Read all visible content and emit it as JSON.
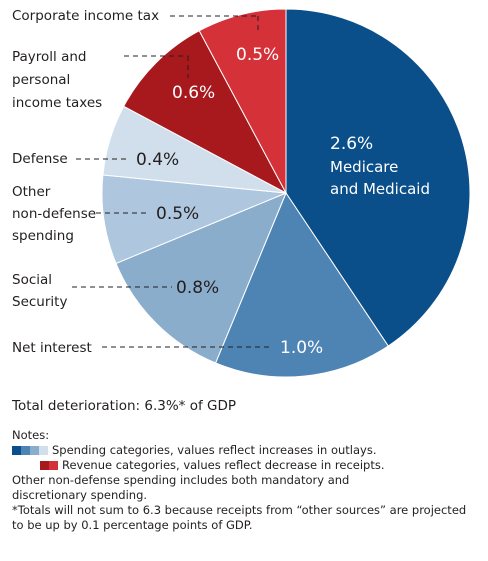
{
  "chart_data": {
    "type": "pie",
    "slices": [
      {
        "label": "Medicare and Medicaid",
        "value": 2.6,
        "display": "2.6%",
        "color": "#0b4f8a",
        "category": "spending"
      },
      {
        "label": "Net interest",
        "value": 1.0,
        "display": "1.0%",
        "color": "#4d84b4",
        "category": "spending"
      },
      {
        "label": "Social Security",
        "value": 0.8,
        "display": "0.8%",
        "color": "#8aadcc",
        "category": "spending"
      },
      {
        "label": "Other non-defense spending",
        "value": 0.5,
        "display": "0.5%",
        "color": "#afc7de",
        "category": "spending"
      },
      {
        "label": "Defense",
        "value": 0.4,
        "display": "0.4%",
        "color": "#d1dfec",
        "category": "spending"
      },
      {
        "label": "Payroll and personal income taxes",
        "value": 0.6,
        "display": "0.6%",
        "color": "#a8191e",
        "category": "revenue"
      },
      {
        "label": "Corporate income tax",
        "value": 0.5,
        "display": "0.5%",
        "color": "#d43139",
        "category": "revenue"
      }
    ],
    "labels": {
      "corporate": "Corporate income tax",
      "payroll": [
        "Payroll and",
        "personal",
        "income taxes"
      ],
      "defense": "Defense",
      "other": [
        "Other",
        "non-defense",
        "spending"
      ],
      "social": [
        "Social",
        "Security"
      ],
      "interest": "Net interest",
      "medicare": [
        "Medicare",
        "and Medicaid"
      ]
    }
  },
  "total_text": "Total deterioration: 6.3%* of GDP",
  "notes": {
    "heading": "Notes:",
    "spending_legend": "Spending categories, values reflect increases in outlays.",
    "revenue_legend": "Revenue categories, values reflect decrease in receipts.",
    "other_note_1": "Other non-defense spending includes both mandatory and",
    "other_note_2": "discretionary spending.",
    "footnote_1": "*Totals will not sum to 6.3 because receipts from “other sources” are projected",
    "footnote_2": "to be up by 0.1 percentage points of GDP."
  },
  "legend_colors": {
    "spending": [
      "#0b4f8a",
      "#4d84b4",
      "#8aadcc",
      "#d1dfec"
    ],
    "revenue": [
      "#a8191e",
      "#d43139"
    ]
  }
}
